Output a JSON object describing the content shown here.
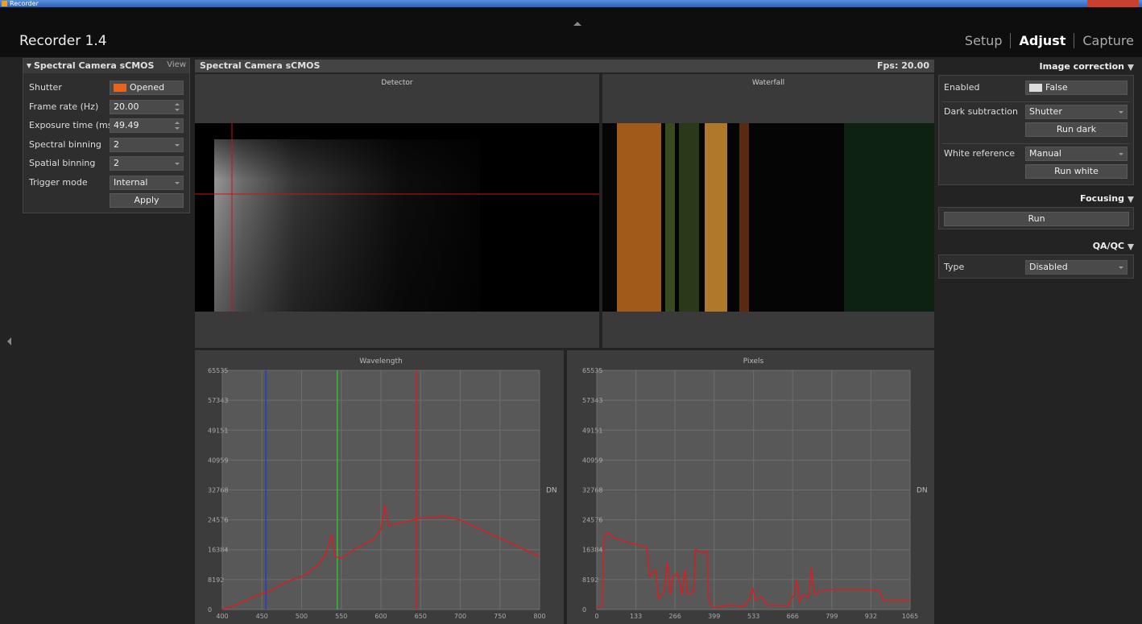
{
  "window": {
    "title": "Recorder"
  },
  "header": {
    "app_title": "Recorder 1.4",
    "tabs": [
      "Setup",
      "Adjust",
      "Capture"
    ],
    "active_tab": 1
  },
  "left_panel": {
    "title": "Spectral Camera sCMOS",
    "view": "View",
    "rows": [
      {
        "label": "Shutter",
        "value": "Opened",
        "control": "toggle"
      },
      {
        "label": "Frame rate (Hz)",
        "value": "20.00",
        "control": "spin"
      },
      {
        "label": "Exposure time (ms)",
        "value": "49.49",
        "control": "spin"
      },
      {
        "label": "Spectral binning",
        "value": "2",
        "control": "select"
      },
      {
        "label": "Spatial binning",
        "value": "2",
        "control": "select"
      },
      {
        "label": "Trigger mode",
        "value": "Internal",
        "control": "select"
      }
    ],
    "apply": "Apply"
  },
  "center_panel": {
    "title": "Spectral Camera sCMOS",
    "fps": "Fps: 20.00",
    "detector": "Detector",
    "waterfall": "Waterfall"
  },
  "right_panel": {
    "image_correction": {
      "title": "Image correction",
      "rows": [
        {
          "label": "Enabled",
          "value": "False",
          "control": "check"
        },
        {
          "label": "Dark subtraction",
          "value": "Shutter",
          "control": "select",
          "button": "Run dark"
        },
        {
          "label": "White reference",
          "value": "Manual",
          "control": "select",
          "button": "Run white"
        }
      ]
    },
    "focusing": {
      "title": "Focusing",
      "button": "Run"
    },
    "qaqc": {
      "title": "QA/QC",
      "rows": [
        {
          "label": "Type",
          "value": "Disabled",
          "control": "select"
        }
      ]
    }
  },
  "chart_data": [
    {
      "type": "line",
      "title": "Wavelength",
      "y_label": "DN",
      "color": "#d42020",
      "x": [
        400,
        420,
        440,
        450,
        460,
        480,
        500,
        520,
        530,
        538,
        542,
        550,
        570,
        590,
        600,
        605,
        610,
        630,
        650,
        680,
        700,
        720,
        750,
        780,
        800
      ],
      "values": [
        0,
        1500,
        3500,
        4300,
        5000,
        7500,
        9000,
        12000,
        15000,
        20500,
        14500,
        14000,
        17000,
        19000,
        22000,
        28500,
        23000,
        24000,
        25000,
        25500,
        24500,
        22500,
        19500,
        16500,
        14500
      ],
      "markers": [
        {
          "value": 455,
          "color": "#2a3ad0"
        },
        {
          "value": 545,
          "color": "#2ec02e"
        },
        {
          "value": 645,
          "color": "#d42020"
        }
      ],
      "xlim": [
        400,
        800
      ],
      "xticks": [
        400,
        450,
        500,
        550,
        600,
        650,
        700,
        750,
        800
      ],
      "ylim": [
        0,
        65535
      ],
      "yticks": [
        0,
        8192,
        16384,
        24576,
        32768,
        40959,
        49151,
        57343,
        65535
      ],
      "grid": true
    },
    {
      "type": "line",
      "title": "Pixels",
      "y_label": "DN",
      "color": "#d42020",
      "x": [
        0,
        18,
        25,
        40,
        60,
        100,
        150,
        170,
        180,
        200,
        210,
        230,
        240,
        250,
        260,
        275,
        290,
        300,
        310,
        330,
        335,
        360,
        375,
        380,
        390,
        400,
        450,
        500,
        520,
        530,
        540,
        560,
        580,
        650,
        670,
        680,
        690,
        700,
        720,
        730,
        740,
        760,
        800,
        900,
        960,
        975,
        1065
      ],
      "values": [
        500,
        1000,
        20000,
        21000,
        19500,
        18500,
        17500,
        17000,
        9000,
        11000,
        3000,
        5000,
        13000,
        4000,
        9000,
        10000,
        4000,
        11000,
        4000,
        5000,
        16500,
        15500,
        16000,
        3000,
        1000,
        500,
        1200,
        800,
        3000,
        6000,
        2500,
        3500,
        1200,
        1000,
        4000,
        8000,
        2000,
        4000,
        3500,
        11500,
        4000,
        5000,
        5500,
        5500,
        5300,
        2500,
        2500
      ],
      "xlim": [
        0,
        1065
      ],
      "xticks": [
        0,
        133,
        266,
        399,
        533,
        666,
        799,
        932,
        1065
      ],
      "ylim": [
        0,
        65535
      ],
      "yticks": [
        0,
        8192,
        16384,
        24576,
        32768,
        40959,
        49151,
        57343,
        65535
      ],
      "grid": true
    }
  ]
}
